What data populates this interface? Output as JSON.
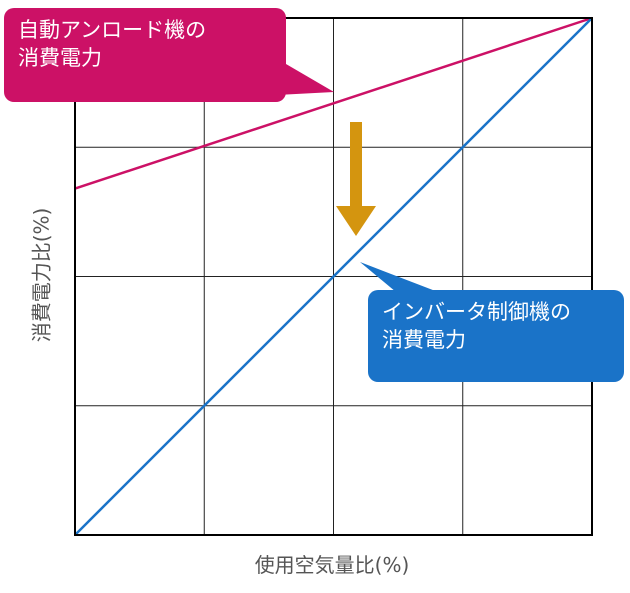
{
  "chart_data": {
    "type": "line",
    "title": "",
    "xlabel": "使用空気量比(%)",
    "ylabel": "消費電力比(%)",
    "xlim": [
      0,
      100
    ],
    "ylim": [
      0,
      100
    ],
    "grid": true,
    "series": [
      {
        "name": "自動アンロード機の消費電力",
        "name_lines": [
          "自動アンロード機の",
          "消費電力"
        ],
        "color": "#cc1166",
        "x": [
          0,
          100
        ],
        "values": [
          67,
          100
        ]
      },
      {
        "name": "インバータ制御機の消費電力",
        "name_lines": [
          "インバータ制御機の",
          "消費電力"
        ],
        "color": "#1a73c8",
        "x": [
          0,
          100
        ],
        "values": [
          0,
          100
        ]
      }
    ],
    "annotation": {
      "type": "arrow-down",
      "color": "#d4950f"
    }
  }
}
